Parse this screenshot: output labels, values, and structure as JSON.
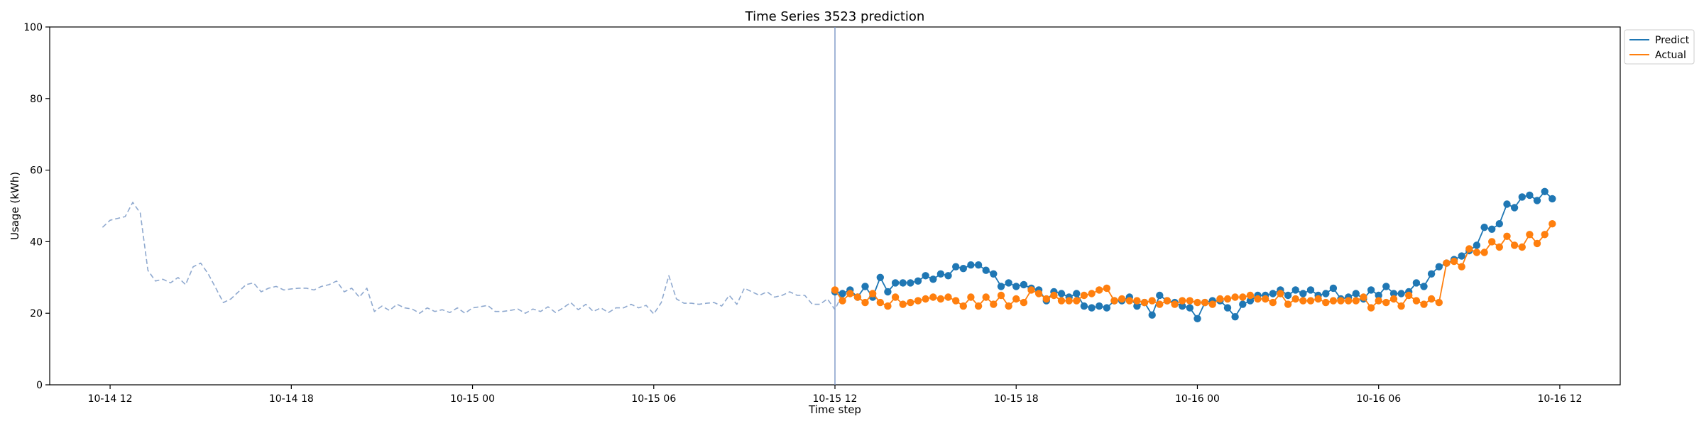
{
  "chart_data": {
    "type": "line",
    "title": "Time Series 3523 prediction",
    "xlabel": "Time step",
    "ylabel": "Usage (kWh)",
    "ylim": [
      0,
      100
    ],
    "yticks": [
      0,
      20,
      40,
      60,
      80,
      100
    ],
    "xlim": [
      "2023-10-14 10:00",
      "2023-10-16 14:00"
    ],
    "xticks": [
      "10-14 12",
      "10-14 18",
      "10-15 00",
      "10-15 06",
      "10-15 12",
      "10-15 18",
      "10-16 00",
      "10-16 06",
      "10-16 12"
    ],
    "xtick_times": [
      "2023-10-14 12:00",
      "2023-10-14 18:00",
      "2023-10-15 00:00",
      "2023-10-15 06:00",
      "2023-10-15 12:00",
      "2023-10-15 18:00",
      "2023-10-16 00:00",
      "2023-10-16 06:00",
      "2023-10-16 12:00"
    ],
    "forecast_start": "2023-10-15 12:00",
    "legend_position": "outside-top-right",
    "series": [
      {
        "name": "",
        "style": "dashed",
        "color": "#8fa9cf",
        "x_start": "2023-10-14 11:45",
        "x_step_minutes": 15,
        "values": [
          44,
          46,
          46.5,
          47,
          51,
          48,
          32,
          29,
          29.5,
          28.5,
          30,
          28,
          33,
          34,
          31,
          27,
          23,
          24,
          26,
          28,
          28.5,
          26,
          27,
          27.5,
          26.5,
          26.8,
          27,
          27,
          26.5,
          27.5,
          28,
          29,
          26,
          27,
          24.5,
          27,
          20.5,
          22,
          20.8,
          22.5,
          21.5,
          21.2,
          20,
          21.5,
          20.5,
          21,
          20.2,
          21.5,
          20,
          21.5,
          21.8,
          22.2,
          20.5,
          20.5,
          20.8,
          21.2,
          20,
          21.2,
          20.5,
          21.8,
          20.2,
          21.5,
          23,
          21,
          22.5,
          20.5,
          21.5,
          20.2,
          21.5,
          21.5,
          22.5,
          21.5,
          22.2,
          19.8,
          23,
          30.5,
          24,
          22.8,
          22.8,
          22.5,
          22.8,
          23,
          22,
          25,
          22.5,
          27,
          26,
          25,
          26,
          24.5,
          25,
          26,
          25,
          25,
          22.5,
          22.5,
          24,
          21,
          25.5
        ]
      },
      {
        "name": "Predict",
        "style": "solid-markers",
        "color": "#1f77b4",
        "x_start": "2023-10-15 12:00",
        "x_step_minutes": 15,
        "values": [
          26,
          25.5,
          26.5,
          24.5,
          27.5,
          24.5,
          30,
          26,
          28.5,
          28.5,
          28.5,
          29,
          30.5,
          29.5,
          31,
          30.5,
          33,
          32.5,
          33.5,
          33.5,
          32,
          31,
          27.5,
          28.5,
          27.5,
          28,
          27,
          26.5,
          23.5,
          26,
          25.5,
          24.5,
          25.5,
          22,
          21.5,
          22,
          21.5,
          23.5,
          23.5,
          24.5,
          22,
          23,
          19.5,
          25,
          23.5,
          23,
          22,
          21.5,
          18.5,
          23,
          23.5,
          23.5,
          21.5,
          19,
          22.5,
          23.5,
          25,
          25,
          25.5,
          26.5,
          25,
          26.5,
          25.5,
          26.5,
          25,
          25.5,
          27,
          24,
          24.5,
          25.5,
          24,
          26.5,
          25,
          27.5,
          25.5,
          25.5,
          26,
          28.5,
          27.5,
          31,
          33,
          34,
          35,
          36,
          37.5,
          39,
          44,
          43.5,
          45,
          50.5,
          49.5,
          52.5,
          53,
          51.5,
          54,
          52
        ]
      },
      {
        "name": "Actual",
        "style": "solid-markers",
        "color": "#ff7f0e",
        "x_start": "2023-10-15 12:00",
        "x_step_minutes": 15,
        "values": [
          26.5,
          23.5,
          25.5,
          24.5,
          23,
          25.5,
          23,
          22,
          24.5,
          22.5,
          23,
          23.5,
          24,
          24.5,
          24,
          24.5,
          23.5,
          22,
          24.5,
          22,
          24.5,
          22.5,
          25,
          22,
          24,
          23,
          26.5,
          25.5,
          24,
          25,
          23.5,
          23.5,
          23.5,
          25,
          25.5,
          26.5,
          27,
          23.5,
          24,
          23.5,
          23.5,
          23,
          23.5,
          22.5,
          23.5,
          22.5,
          23.5,
          23.5,
          23,
          23,
          22.5,
          24,
          24,
          24.5,
          24.5,
          25,
          24,
          24,
          23,
          25.5,
          22.5,
          24,
          23.5,
          23.5,
          24,
          23,
          23.5,
          23.5,
          23.5,
          23.5,
          24.5,
          21.5,
          23.5,
          23,
          24,
          22,
          25,
          23.5,
          22.5,
          24,
          23,
          34,
          34.5,
          33,
          38,
          37,
          37,
          40,
          38.5,
          41.5,
          39,
          38.5,
          42,
          39.5,
          42,
          45
        ]
      }
    ]
  }
}
